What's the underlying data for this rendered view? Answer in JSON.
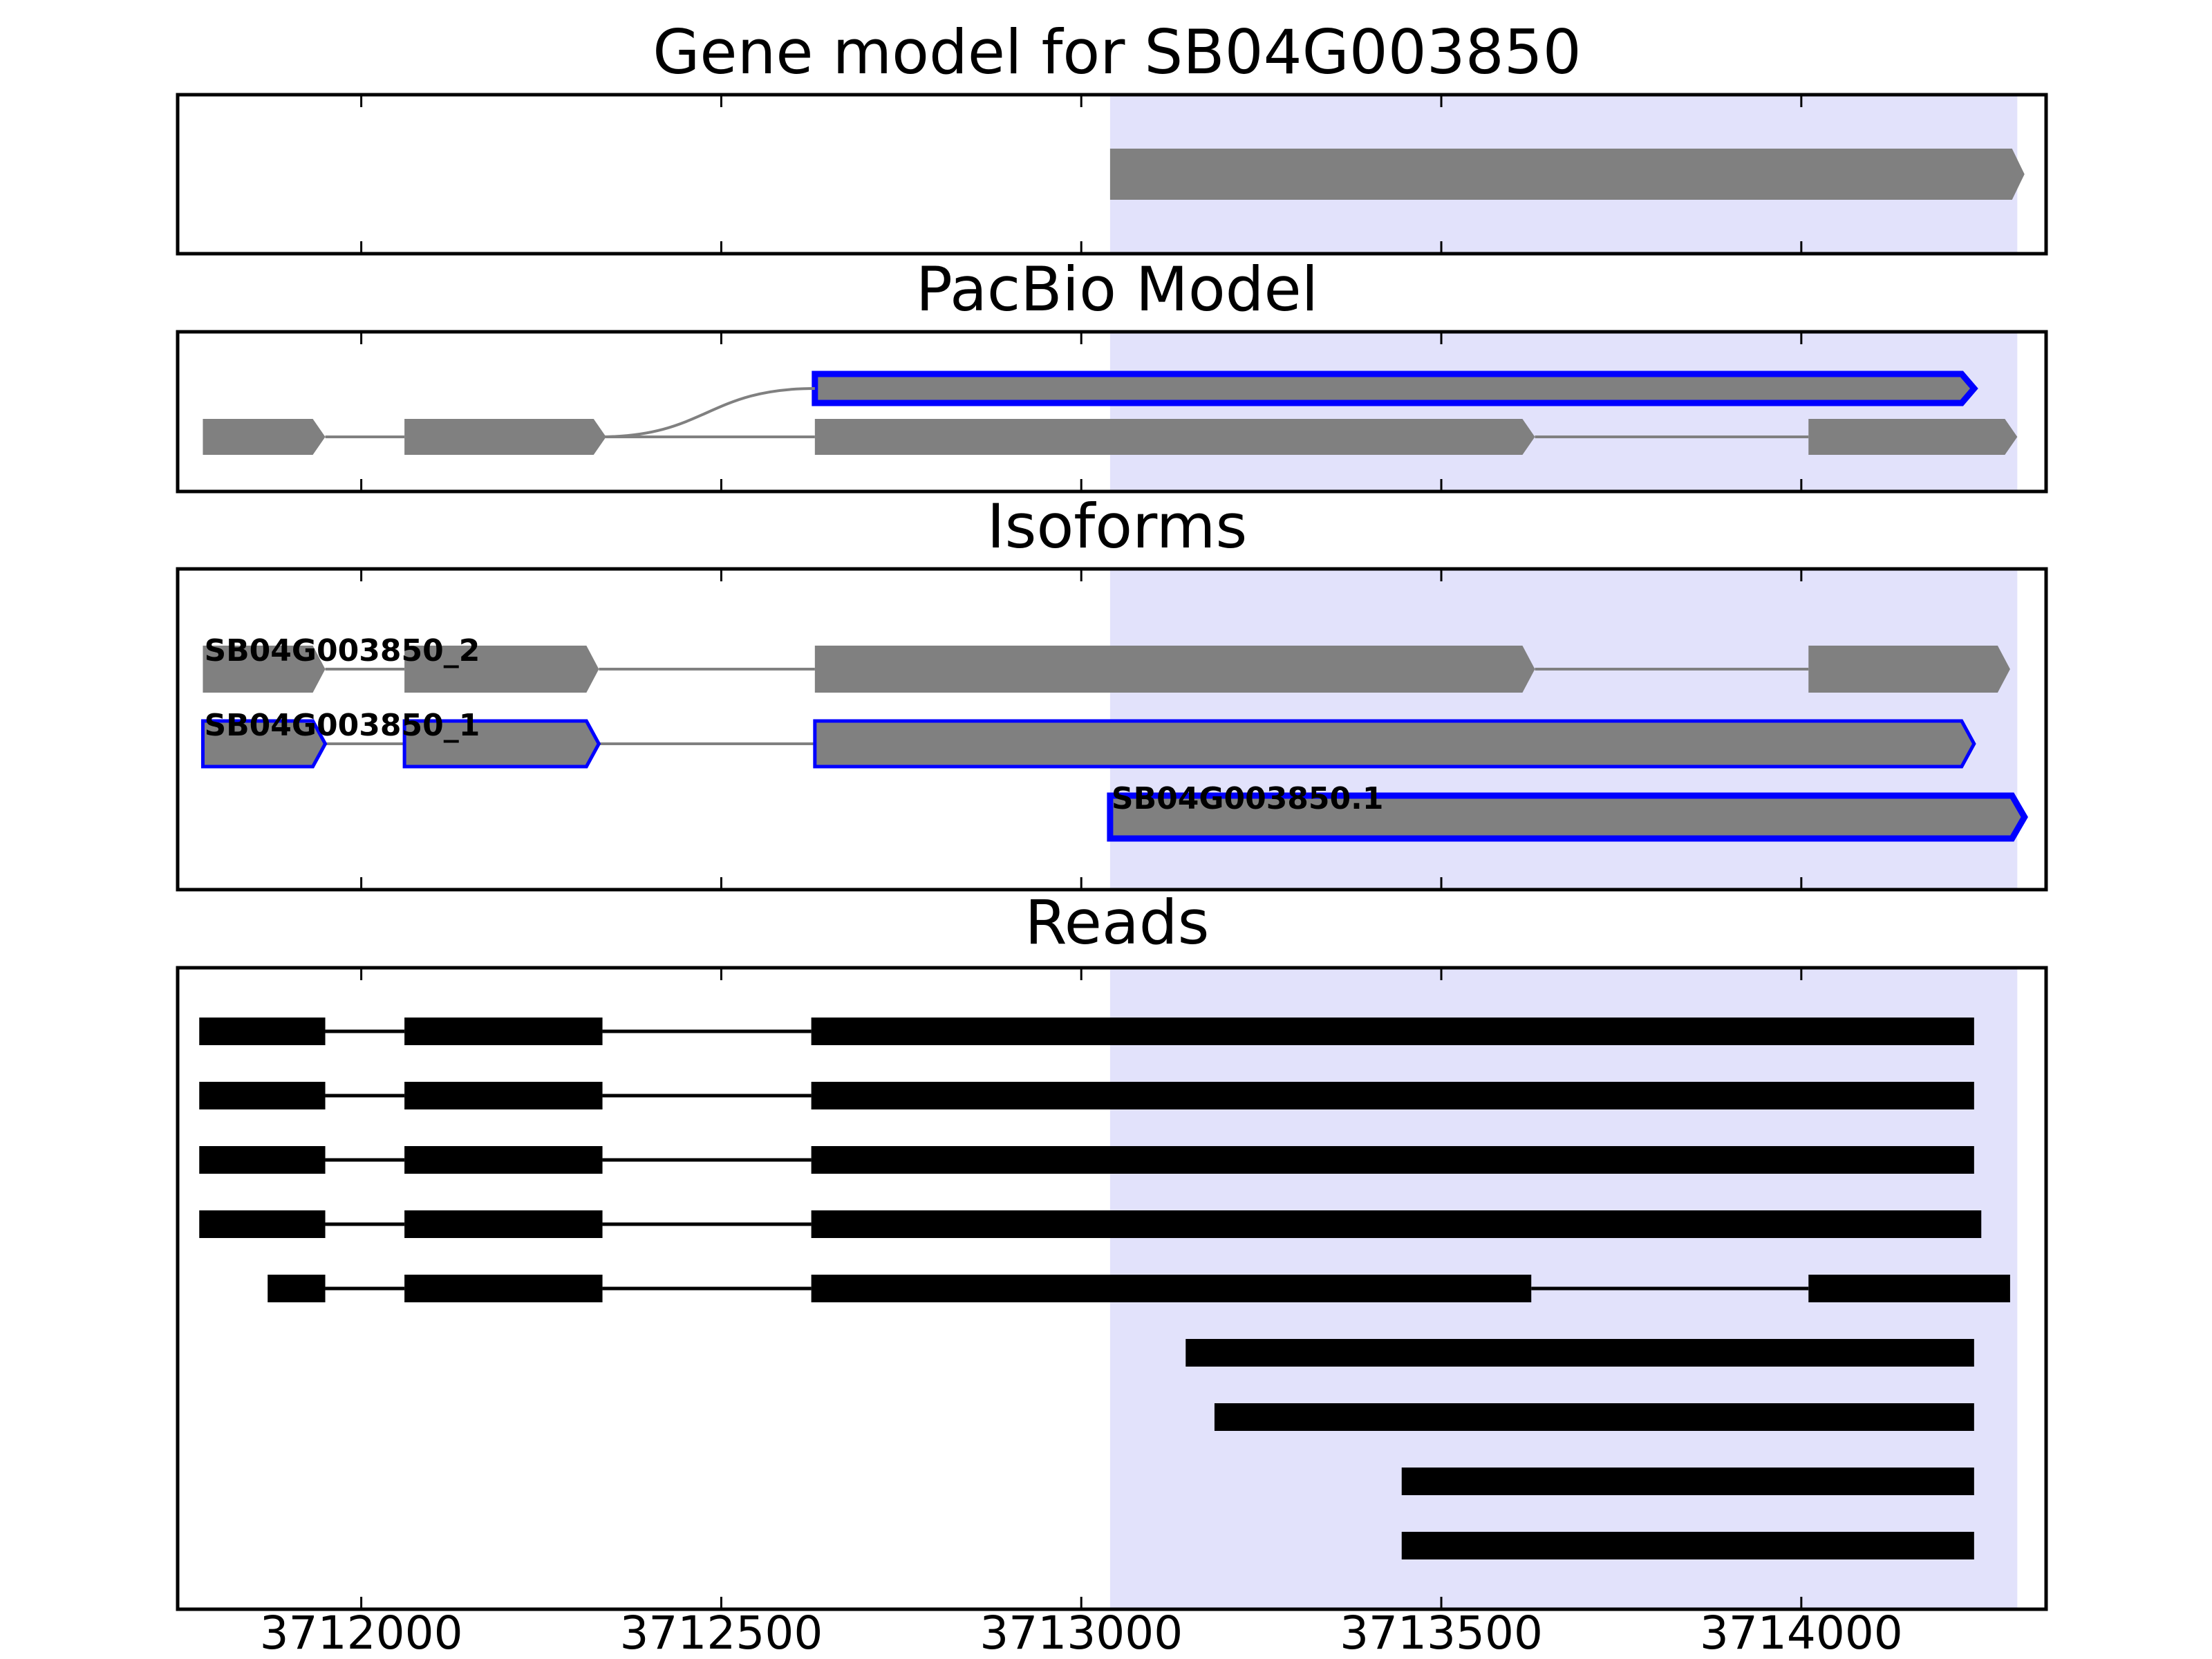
{
  "titles": {
    "gene_model": "Gene model for SB04G003850",
    "pacbio": "PacBio Model",
    "isoforms": "Isoforms",
    "reads": "Reads"
  },
  "colors": {
    "exon_fill": "#808080",
    "intron_line": "#808080",
    "highlight_outline": "#0000ff",
    "read": "#000000",
    "region_shade": "#e2e2fb",
    "frame": "#000000"
  },
  "chart_data": {
    "type": "genome-track",
    "xlim": [
      3711745,
      3714340
    ],
    "x_ticks": [
      3712000,
      3712500,
      3713000,
      3713500,
      3714000
    ],
    "x_tick_labels": [
      "3712000",
      "3712500",
      "3713000",
      "3713500",
      "3714000"
    ],
    "shaded_region": [
      3713040,
      3714300
    ],
    "gene_model": [
      {
        "exons": [
          [
            3713040,
            3714310
          ]
        ],
        "style": "plain"
      }
    ],
    "pacbio_model": [
      {
        "row": "upper",
        "exons": [
          [
            3712630,
            3714240
          ]
        ],
        "style": "outlined",
        "branches_from": 3712330
      },
      {
        "row": "lower",
        "exons": [
          [
            3711780,
            3711950
          ],
          [
            3712060,
            3712340
          ],
          [
            3712630,
            3713630
          ],
          [
            3714010,
            3714300
          ]
        ],
        "style": "plain"
      }
    ],
    "isoforms": [
      {
        "name": "SB04G003850_2",
        "exons": [
          [
            3711780,
            3711950
          ],
          [
            3712060,
            3712330
          ],
          [
            3712630,
            3713630
          ],
          [
            3714010,
            3714290
          ]
        ],
        "style": "plain"
      },
      {
        "name": "SB04G003850_1",
        "exons": [
          [
            3711780,
            3711950
          ],
          [
            3712060,
            3712330
          ],
          [
            3712630,
            3714240
          ]
        ],
        "style": "outlined-thin"
      },
      {
        "name": "SB04G003850.1",
        "exons": [
          [
            3713040,
            3714310
          ]
        ],
        "style": "outlined"
      }
    ],
    "reads": [
      [
        [
          3711775,
          3711950
        ],
        [
          3712060,
          3712335
        ],
        [
          3712625,
          3714240
        ]
      ],
      [
        [
          3711775,
          3711950
        ],
        [
          3712060,
          3712335
        ],
        [
          3712625,
          3714240
        ]
      ],
      [
        [
          3711775,
          3711950
        ],
        [
          3712060,
          3712335
        ],
        [
          3712625,
          3714240
        ]
      ],
      [
        [
          3711775,
          3711950
        ],
        [
          3712060,
          3712335
        ],
        [
          3712625,
          3714250
        ]
      ],
      [
        [
          3711870,
          3711950
        ],
        [
          3712060,
          3712335
        ],
        [
          3712625,
          3713625
        ],
        [
          3714010,
          3714290
        ]
      ],
      [
        [
          3713145,
          3714240
        ]
      ],
      [
        [
          3713185,
          3714240
        ]
      ],
      [
        [
          3713445,
          3714240
        ]
      ],
      [
        [
          3713445,
          3714240
        ]
      ]
    ]
  }
}
